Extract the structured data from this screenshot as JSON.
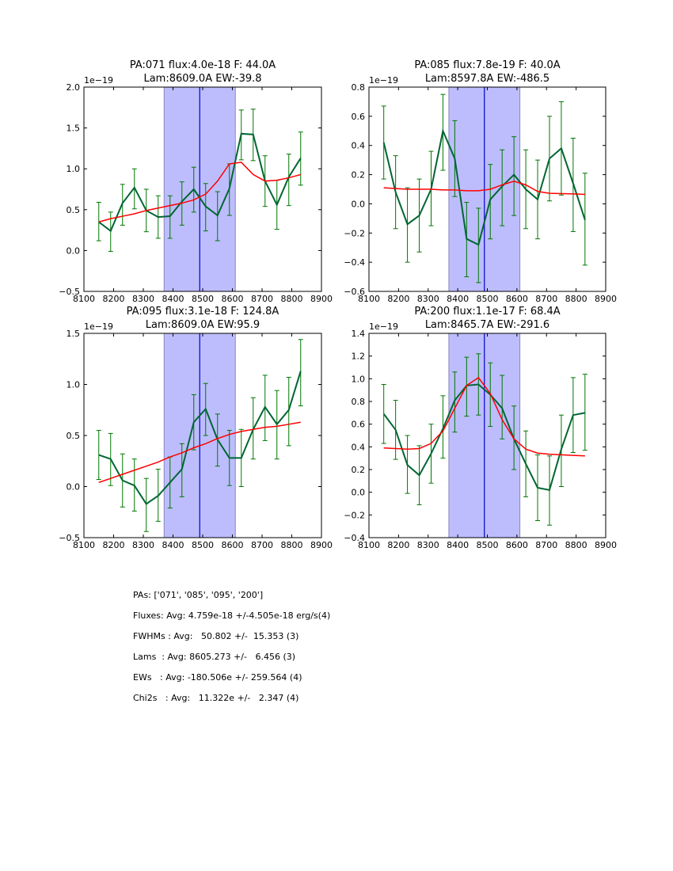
{
  "chart_data": [
    {
      "type": "line",
      "title_line1": "PA:071 flux:4.0e-18 F: 44.0A",
      "title_line2": "Lam:8609.0A EW:-39.8",
      "offset_label": "1e−19",
      "xlim": [
        8100,
        8900
      ],
      "ylim": [
        -0.5,
        2.0
      ],
      "xticks": [
        8100,
        8200,
        8300,
        8400,
        8500,
        8600,
        8700,
        8800,
        8900
      ],
      "yticks": [
        -0.5,
        0.0,
        0.5,
        1.0,
        1.5,
        2.0
      ],
      "ytick_labels": [
        "−0.5",
        "0.0",
        "0.5",
        "1.0",
        "1.5",
        "2.0"
      ],
      "band": [
        8370,
        8610
      ],
      "center_line": 8490,
      "x": [
        8150,
        8190,
        8230,
        8270,
        8310,
        8350,
        8390,
        8430,
        8470,
        8510,
        8550,
        8590,
        8630,
        8670,
        8710,
        8750,
        8790,
        8830
      ],
      "series": [
        {
          "name": "data",
          "color": "#006633",
          "values": [
            0.35,
            0.24,
            0.58,
            0.77,
            0.49,
            0.41,
            0.42,
            0.6,
            0.75,
            0.54,
            0.43,
            0.76,
            1.43,
            1.42,
            0.85,
            0.56,
            0.9,
            1.13
          ],
          "err_low": [
            0.12,
            -0.01,
            0.31,
            0.51,
            0.23,
            0.15,
            0.15,
            0.31,
            0.47,
            0.24,
            0.12,
            0.43,
            1.11,
            1.1,
            0.54,
            0.26,
            0.55,
            0.8
          ],
          "err_high": [
            0.59,
            0.47,
            0.81,
            1.0,
            0.75,
            0.67,
            0.67,
            0.84,
            1.02,
            0.82,
            0.72,
            1.06,
            1.72,
            1.73,
            1.16,
            0.86,
            1.18,
            1.45
          ]
        },
        {
          "name": "model",
          "color": "#ff0000",
          "values": [
            0.35,
            0.39,
            0.42,
            0.45,
            0.49,
            0.52,
            0.55,
            0.58,
            0.62,
            0.69,
            0.85,
            1.06,
            1.08,
            0.93,
            0.85,
            0.86,
            0.89,
            0.93
          ]
        }
      ]
    },
    {
      "type": "line",
      "title_line1": "PA:085 flux:7.8e-19 F: 40.0A",
      "title_line2": "Lam:8597.8A EW:-486.5",
      "offset_label": "1e−19",
      "xlim": [
        8100,
        8900
      ],
      "ylim": [
        -0.6,
        0.8
      ],
      "xticks": [
        8100,
        8200,
        8300,
        8400,
        8500,
        8600,
        8700,
        8800,
        8900
      ],
      "yticks": [
        -0.6,
        -0.4,
        -0.2,
        0.0,
        0.2,
        0.4,
        0.6,
        0.8
      ],
      "ytick_labels": [
        "−0.6",
        "−0.4",
        "−0.2",
        "0.0",
        "0.2",
        "0.4",
        "0.6",
        "0.8"
      ],
      "band": [
        8370,
        8610
      ],
      "center_line": 8490,
      "x": [
        8150,
        8190,
        8230,
        8270,
        8310,
        8350,
        8390,
        8430,
        8470,
        8510,
        8550,
        8590,
        8630,
        8670,
        8710,
        8750,
        8790,
        8830
      ],
      "series": [
        {
          "name": "data",
          "color": "#006633",
          "values": [
            0.42,
            0.08,
            -0.14,
            -0.08,
            0.1,
            0.5,
            0.31,
            -0.24,
            -0.28,
            0.03,
            0.12,
            0.2,
            0.1,
            0.03,
            0.31,
            0.38,
            0.14,
            -0.11
          ],
          "err_low": [
            0.17,
            -0.17,
            -0.4,
            -0.33,
            -0.15,
            0.23,
            0.05,
            -0.5,
            -0.54,
            -0.24,
            -0.15,
            -0.08,
            -0.17,
            -0.24,
            0.02,
            0.06,
            -0.19,
            -0.42
          ],
          "err_high": [
            0.67,
            0.33,
            0.11,
            0.17,
            0.36,
            0.75,
            0.57,
            0.01,
            -0.03,
            0.27,
            0.37,
            0.46,
            0.37,
            0.3,
            0.6,
            0.7,
            0.45,
            0.21
          ]
        },
        {
          "name": "model",
          "color": "#ff0000",
          "values": [
            0.11,
            0.105,
            0.1,
            0.1,
            0.1,
            0.095,
            0.095,
            0.09,
            0.09,
            0.1,
            0.13,
            0.155,
            0.13,
            0.085,
            0.072,
            0.07,
            0.068,
            0.065
          ]
        }
      ]
    },
    {
      "type": "line",
      "title_line1": "PA:095 flux:3.1e-18 F: 124.8A",
      "title_line2": "Lam:8609.0A EW:95.9",
      "offset_label": "1e−19",
      "xlim": [
        8100,
        8900
      ],
      "ylim": [
        -0.5,
        1.5
      ],
      "xticks": [
        8100,
        8200,
        8300,
        8400,
        8500,
        8600,
        8700,
        8800,
        8900
      ],
      "yticks": [
        -0.5,
        0.0,
        0.5,
        1.0,
        1.5
      ],
      "ytick_labels": [
        "−0.5",
        "0.0",
        "0.5",
        "1.0",
        "1.5"
      ],
      "band": [
        8370,
        8610
      ],
      "center_line": 8490,
      "x": [
        8150,
        8190,
        8230,
        8270,
        8310,
        8350,
        8390,
        8430,
        8470,
        8510,
        8550,
        8590,
        8630,
        8670,
        8710,
        8750,
        8790,
        8830
      ],
      "series": [
        {
          "name": "data",
          "color": "#006633",
          "values": [
            0.31,
            0.27,
            0.06,
            0.01,
            -0.17,
            -0.09,
            0.04,
            0.17,
            0.63,
            0.76,
            0.46,
            0.28,
            0.28,
            0.56,
            0.78,
            0.61,
            0.75,
            1.13
          ],
          "err_low": [
            0.07,
            0.01,
            -0.2,
            -0.24,
            -0.44,
            -0.34,
            -0.21,
            -0.1,
            0.36,
            0.5,
            0.2,
            0.01,
            0.0,
            0.27,
            0.45,
            0.27,
            0.4,
            0.79
          ],
          "err_high": [
            0.55,
            0.52,
            0.32,
            0.27,
            0.08,
            0.17,
            0.29,
            0.42,
            0.9,
            1.01,
            0.71,
            0.55,
            0.56,
            0.87,
            1.09,
            0.94,
            1.07,
            1.44
          ]
        },
        {
          "name": "model",
          "color": "#ff0000",
          "values": [
            0.04,
            0.08,
            0.12,
            0.16,
            0.2,
            0.24,
            0.29,
            0.33,
            0.38,
            0.42,
            0.47,
            0.51,
            0.54,
            0.56,
            0.58,
            0.59,
            0.61,
            0.63
          ]
        }
      ]
    },
    {
      "type": "line",
      "title_line1": "PA:200 flux:1.1e-17 F: 68.4A",
      "title_line2": "Lam:8465.7A EW:-291.6",
      "offset_label": "1e−19",
      "xlim": [
        8100,
        8900
      ],
      "ylim": [
        -0.4,
        1.4
      ],
      "xticks": [
        8100,
        8200,
        8300,
        8400,
        8500,
        8600,
        8700,
        8800,
        8900
      ],
      "yticks": [
        -0.4,
        -0.2,
        0.0,
        0.2,
        0.4,
        0.6,
        0.8,
        1.0,
        1.2,
        1.4
      ],
      "ytick_labels": [
        "−0.4",
        "−0.2",
        "0.0",
        "0.2",
        "0.4",
        "0.6",
        "0.8",
        "1.0",
        "1.2",
        "1.4"
      ],
      "band": [
        8370,
        8610
      ],
      "center_line": 8490,
      "x": [
        8150,
        8190,
        8230,
        8270,
        8310,
        8350,
        8390,
        8430,
        8470,
        8510,
        8550,
        8590,
        8630,
        8670,
        8710,
        8750,
        8790,
        8830
      ],
      "series": [
        {
          "name": "data",
          "color": "#006633",
          "values": [
            0.69,
            0.55,
            0.24,
            0.15,
            0.34,
            0.56,
            0.81,
            0.94,
            0.95,
            0.86,
            0.74,
            0.47,
            0.25,
            0.04,
            0.02,
            0.38,
            0.68,
            0.7
          ],
          "err_low": [
            0.43,
            0.29,
            -0.01,
            -0.11,
            0.08,
            0.3,
            0.53,
            0.67,
            0.68,
            0.58,
            0.47,
            0.2,
            -0.04,
            -0.25,
            -0.29,
            0.05,
            0.35,
            0.37
          ],
          "err_high": [
            0.95,
            0.81,
            0.5,
            0.41,
            0.6,
            0.85,
            1.06,
            1.19,
            1.22,
            1.14,
            1.03,
            0.76,
            0.54,
            0.33,
            0.32,
            0.68,
            1.01,
            1.04
          ]
        },
        {
          "name": "model",
          "color": "#ff0000",
          "values": [
            0.39,
            0.385,
            0.38,
            0.385,
            0.43,
            0.54,
            0.74,
            0.94,
            1.01,
            0.87,
            0.64,
            0.47,
            0.38,
            0.345,
            0.335,
            0.33,
            0.325,
            0.32
          ]
        }
      ]
    }
  ],
  "summary": {
    "pas": "PAs: ['071', '085', '095', '200']",
    "fluxes": "Fluxes: Avg: 4.759e-18 +/-4.505e-18 erg/s(4)",
    "fwhms": "FWHMs : Avg:   50.802 +/-  15.353 (3)",
    "lams": "Lams  : Avg: 8605.273 +/-   6.456 (3)",
    "ews": "EWs   : Avg: -180.506e +/- 259.564 (4)",
    "chi2s": "Chi2s   : Avg:   11.322e +/-   2.347 (4)"
  },
  "colors": {
    "band_fill": "#bdbdfd",
    "band_edge": "#8888bb",
    "center_line": "#0000cc"
  }
}
